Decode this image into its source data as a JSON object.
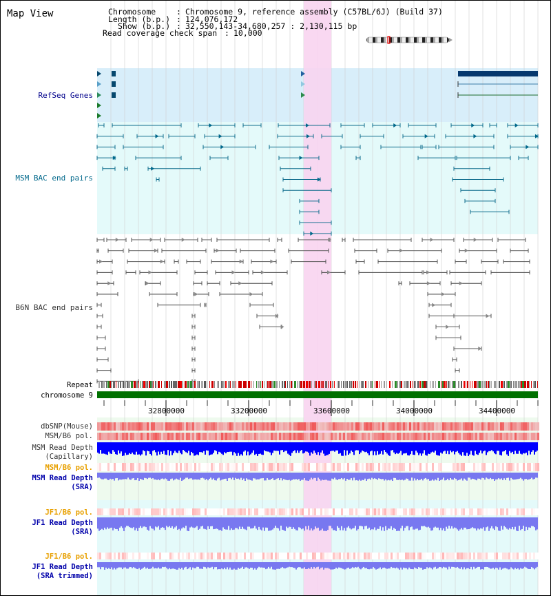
{
  "title": "Map View",
  "info": {
    "chromosome_label": "Chromosome",
    "chromosome_value": "Chromosome 9, reference assembly (C57BL/6J) (Build 37)",
    "length_label": "Length (b.p.)",
    "length_value": "124,076,172",
    "show_label": "Show (b.p.)",
    "show_value": "32,550,143-34,680,257 : 2,130,115 bp",
    "coverage_label": "Read coverage check span",
    "coverage_value": "10,000"
  },
  "tracks": {
    "refseq": "RefSeq Genes",
    "msm_bac": "MSM BAC end pairs",
    "b6n_bac": "B6N BAC end pairs",
    "repeat": "Repeat",
    "chromosome": "chromosome 9",
    "dbsnp": "dbSNP(Mouse)",
    "msm_b6_pol": "MSM/B6 pol.",
    "msm_depth_cap_1": "MSM Read Depth",
    "msm_depth_cap_2": "(Capillary)",
    "msm_b6_pol_sra": "MSM/B6 pol.",
    "msm_depth_sra_1": "MSM Read Depth",
    "msm_depth_sra_2": "(SRA)",
    "jf1_pol_1": "JF1/B6 pol.",
    "jf1_depth_1": "JF1 Read Depth",
    "jf1_depth_1_sub": "(SRA)",
    "jf1_pol_2": "JF1/B6 pol.",
    "jf1_depth_2": "JF1 Read Depth",
    "jf1_depth_2_sub": "(SRA trimmed)"
  },
  "axis": {
    "ticks": [
      "32800000",
      "33200000",
      "33600000",
      "34000000",
      "34400000"
    ]
  },
  "colors": {
    "refseq_label": "#00008b",
    "msm_label": "#00688b",
    "b6n_label": "#333333",
    "orange_label": "#e8a000",
    "blue_label": "#0000aa",
    "highlight": "#f8d4f0",
    "chromosome_bar": "#007000",
    "depth_dark": "#0000ff",
    "depth_light": "#7878f0"
  }
}
